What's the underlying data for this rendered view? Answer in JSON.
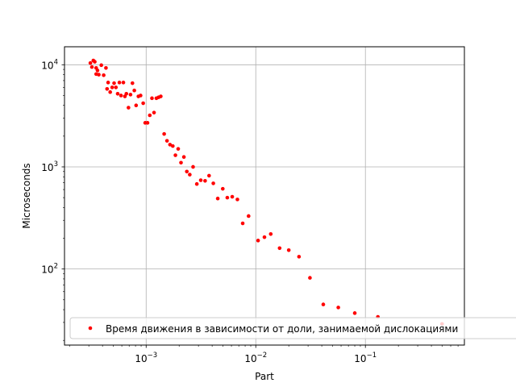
{
  "chart_data": {
    "type": "scatter",
    "title": "",
    "xlabel": "Part",
    "ylabel": "Microseconds",
    "xscale": "log",
    "yscale": "log",
    "xlim": [
      0.00018,
      0.8
    ],
    "ylim": [
      18,
      15000
    ],
    "grid": true,
    "legend_placement": "lower-left",
    "x_ticks": [
      {
        "value": 0.001,
        "base": "10",
        "exp": "−3"
      },
      {
        "value": 0.01,
        "base": "10",
        "exp": "−2"
      },
      {
        "value": 0.1,
        "base": "10",
        "exp": "−1"
      }
    ],
    "y_ticks": [
      {
        "value": 100,
        "base": "10",
        "exp": "2"
      },
      {
        "value": 1000,
        "base": "10",
        "exp": "3"
      },
      {
        "value": 10000,
        "base": "10",
        "exp": "4"
      }
    ],
    "series": [
      {
        "name": "Время движения в зависимости от доли, занимаемой дислокациями",
        "color": "#ff0000",
        "points": [
          [
            0.00031,
            10400
          ],
          [
            0.00032,
            9500
          ],
          [
            0.00033,
            11000
          ],
          [
            0.00034,
            10700
          ],
          [
            0.00035,
            9300
          ],
          [
            0.00035,
            8100
          ],
          [
            0.00036,
            8800
          ],
          [
            0.00037,
            8000
          ],
          [
            0.00039,
            9900
          ],
          [
            0.00041,
            7900
          ],
          [
            0.00043,
            9300
          ],
          [
            0.00044,
            5800
          ],
          [
            0.00045,
            6700
          ],
          [
            0.00047,
            5400
          ],
          [
            0.00049,
            6000
          ],
          [
            0.00051,
            6600
          ],
          [
            0.00053,
            6000
          ],
          [
            0.00055,
            5200
          ],
          [
            0.00057,
            6700
          ],
          [
            0.00059,
            5000
          ],
          [
            0.00062,
            6700
          ],
          [
            0.00064,
            4900
          ],
          [
            0.00066,
            5200
          ],
          [
            0.00069,
            3800
          ],
          [
            0.00072,
            5100
          ],
          [
            0.00075,
            6600
          ],
          [
            0.00078,
            5600
          ],
          [
            0.00081,
            4000
          ],
          [
            0.00085,
            4900
          ],
          [
            0.00089,
            5000
          ],
          [
            0.00094,
            4200
          ],
          [
            0.00098,
            2700
          ],
          [
            0.00103,
            2700
          ],
          [
            0.00108,
            3200
          ],
          [
            0.00113,
            4700
          ],
          [
            0.00118,
            3400
          ],
          [
            0.00124,
            4700
          ],
          [
            0.0013,
            4800
          ],
          [
            0.00136,
            4900
          ],
          [
            0.00146,
            2100
          ],
          [
            0.00155,
            1800
          ],
          [
            0.00165,
            1650
          ],
          [
            0.00175,
            1600
          ],
          [
            0.00185,
            1300
          ],
          [
            0.00196,
            1500
          ],
          [
            0.00208,
            1100
          ],
          [
            0.00221,
            1250
          ],
          [
            0.00235,
            900
          ],
          [
            0.0025,
            840
          ],
          [
            0.00268,
            1000
          ],
          [
            0.0029,
            680
          ],
          [
            0.00315,
            740
          ],
          [
            0.00345,
            730
          ],
          [
            0.00375,
            820
          ],
          [
            0.0041,
            690
          ],
          [
            0.0045,
            490
          ],
          [
            0.005,
            610
          ],
          [
            0.0055,
            500
          ],
          [
            0.0061,
            510
          ],
          [
            0.0068,
            480
          ],
          [
            0.0076,
            280
          ],
          [
            0.0086,
            330
          ],
          [
            0.0105,
            190
          ],
          [
            0.012,
            205
          ],
          [
            0.0137,
            220
          ],
          [
            0.0165,
            160
          ],
          [
            0.02,
            153
          ],
          [
            0.0248,
            132
          ],
          [
            0.0312,
            82
          ],
          [
            0.0413,
            45
          ],
          [
            0.0566,
            42
          ],
          [
            0.08,
            37
          ],
          [
            0.13,
            34
          ],
          [
            0.5,
            29
          ]
        ]
      }
    ]
  }
}
